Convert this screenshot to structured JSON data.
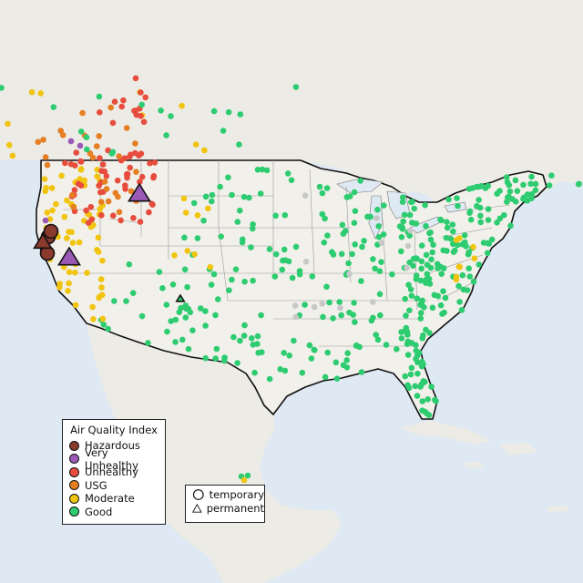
{
  "legend": {
    "title": "Air Quality Index",
    "categories": [
      {
        "label": "Hazardous",
        "color": "#8b3a2e"
      },
      {
        "label": "Very Unhealthy",
        "color": "#9b59b6"
      },
      {
        "label": "Unhealthy",
        "color": "#e74c3c"
      },
      {
        "label": "USG",
        "color": "#e67e22"
      },
      {
        "label": "Moderate",
        "color": "#f1c40f"
      },
      {
        "label": "Good",
        "color": "#2ecc71"
      }
    ]
  },
  "monitor_types": [
    {
      "label": "temporary",
      "shape": "circle"
    },
    {
      "label": "permanent",
      "shape": "triangle"
    }
  ],
  "colors": {
    "water": "#dfe9f3",
    "land_other": "#ecebe6",
    "land_usa": "#f2f0ea",
    "no_data": "#c8c8c8"
  }
}
